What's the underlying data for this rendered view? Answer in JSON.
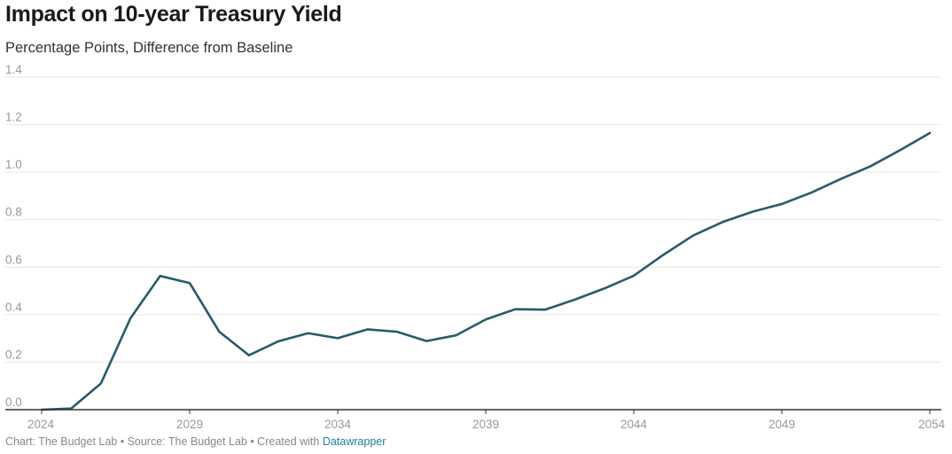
{
  "chart_data": {
    "type": "line",
    "title": "Impact on 10-year Treasury Yield",
    "subtitle": "Percentage Points, Difference from Baseline",
    "xlabel": "",
    "ylabel": "",
    "xlim": [
      2024,
      2054
    ],
    "ylim": [
      0,
      1.4
    ],
    "x_ticks": [
      "2024",
      "2029",
      "2034",
      "2039",
      "2044",
      "2049",
      "2054"
    ],
    "y_ticks": [
      "0.0",
      "0.2",
      "0.4",
      "0.6",
      "0.8",
      "1.0",
      "1.2",
      "1.4"
    ],
    "grid": "horizontal",
    "legend": "none",
    "series": [
      {
        "color": "#255c6b",
        "x": [
          2024,
          2025,
          2026,
          2027,
          2028,
          2029,
          2030,
          2031,
          2032,
          2033,
          2034,
          2035,
          2036,
          2037,
          2038,
          2039,
          2040,
          2041,
          2042,
          2043,
          2044,
          2045,
          2046,
          2047,
          2048,
          2049,
          2050,
          2051,
          2052,
          2053,
          2054
        ],
        "values": [
          0.0,
          0.005,
          0.11,
          0.385,
          0.563,
          0.533,
          0.328,
          0.229,
          0.288,
          0.322,
          0.301,
          0.338,
          0.328,
          0.289,
          0.313,
          0.38,
          0.423,
          0.421,
          0.463,
          0.51,
          0.564,
          0.652,
          0.733,
          0.79,
          0.833,
          0.866,
          0.914,
          0.972,
          1.025,
          1.093,
          1.165
        ]
      }
    ]
  },
  "footer": {
    "credit": "Chart: The Budget Lab • Source: The Budget Lab • Created with ",
    "tool": "Datawrapper"
  },
  "colors": {
    "line": "#255c6b",
    "grid": "#e6e6e6",
    "axis": "#333333",
    "tick_label": "#999999",
    "link": "#1d81a2"
  }
}
